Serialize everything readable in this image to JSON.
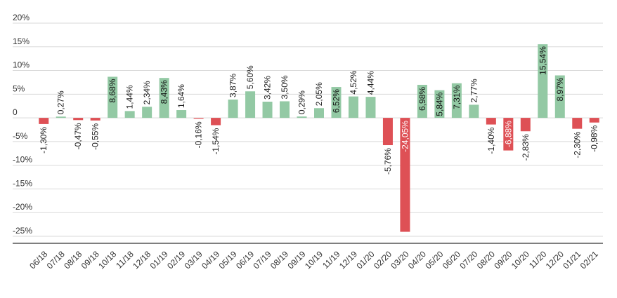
{
  "chart_data": {
    "type": "bar",
    "title": "",
    "xlabel": "",
    "ylabel": "",
    "ylim": [
      -25,
      20
    ],
    "yticks": [
      20,
      15,
      10,
      5,
      0,
      -5,
      -10,
      -15,
      -20,
      -25
    ],
    "yticklabels": [
      "20%",
      "15%",
      "10%",
      "5%",
      "0",
      "-5%",
      "-10%",
      "-15%",
      "-20%",
      "-25%"
    ],
    "grid": true,
    "legend": "none",
    "colors": {
      "positive": "#93c9a4",
      "negative": "#de5055"
    },
    "categories": [
      "06/18",
      "07/18",
      "08/18",
      "09/18",
      "10/18",
      "11/18",
      "12/18",
      "01/19",
      "02/19",
      "03/19",
      "04/19",
      "05/19",
      "06/19",
      "07/19",
      "08/19",
      "09/19",
      "10/19",
      "11/19",
      "12/19",
      "01/20",
      "02/20",
      "03/20",
      "04/20",
      "05/20",
      "06/20",
      "07/20",
      "08/20",
      "09/20",
      "10/20",
      "11/20",
      "12/20",
      "01/21",
      "02/21"
    ],
    "values": [
      -1.3,
      0.27,
      -0.47,
      -0.55,
      8.68,
      1.44,
      2.34,
      8.43,
      1.64,
      -0.16,
      -1.54,
      3.87,
      5.6,
      3.42,
      3.5,
      0.29,
      2.05,
      6.52,
      4.52,
      4.44,
      -5.76,
      -24.05,
      6.98,
      5.84,
      7.31,
      2.77,
      -1.4,
      -6.88,
      -2.83,
      15.54,
      8.97,
      -2.3,
      -0.98
    ],
    "labels": [
      "-1,30%",
      "0,27%",
      "-0,47%",
      "-0,55%",
      "8,68%",
      "1,44%",
      "2,34%",
      "8,43%",
      "1,64%",
      "-0,16%",
      "-1,54%",
      "3,87%",
      "5,60%",
      "3,42%",
      "3,50%",
      "0,29%",
      "2,05%",
      "6,52%",
      "4,52%",
      "4,44%",
      "-5,76%",
      "-24,05%",
      "6,98%",
      "5,84%",
      "7,31%",
      "2,77%",
      "-1,40%",
      "-6,88%",
      "-2,83%",
      "15,54%",
      "8,97%",
      "-2,30%",
      "-0,98%"
    ]
  }
}
